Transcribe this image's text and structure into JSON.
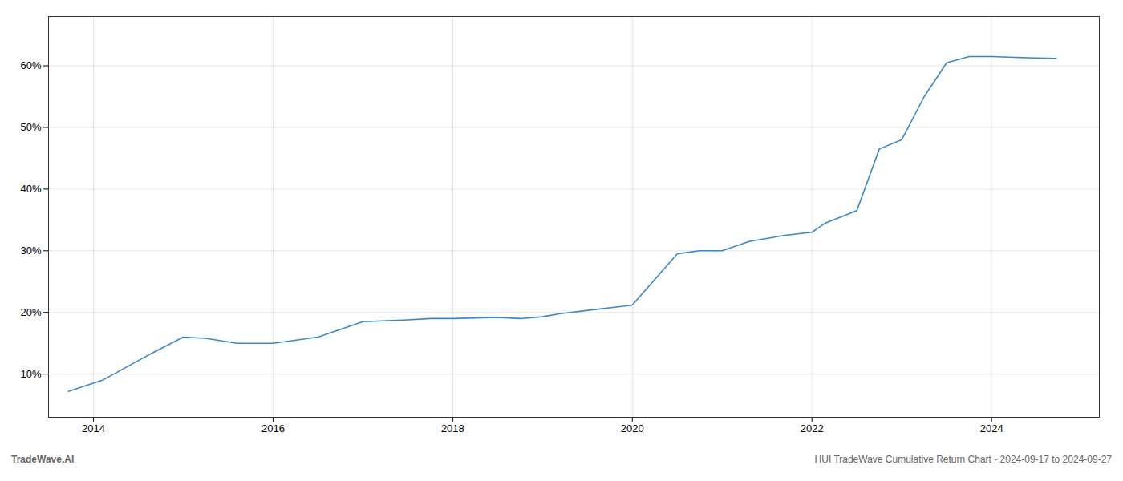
{
  "chart_data": {
    "type": "line",
    "annotations": [
      "TradeWave.AI",
      "HUI TradeWave Cumulative Return Chart - 2024-09-17 to 2024-09-27"
    ],
    "x": [
      2013.72,
      2014.1,
      2014.6,
      2015.0,
      2015.25,
      2015.6,
      2016.0,
      2016.5,
      2017.0,
      2017.5,
      2017.75,
      2018.0,
      2018.5,
      2018.75,
      2019.0,
      2019.2,
      2019.6,
      2019.9,
      2020.0,
      2020.5,
      2020.75,
      2021.0,
      2021.3,
      2021.7,
      2022.0,
      2022.15,
      2022.5,
      2022.75,
      2023.0,
      2023.25,
      2023.5,
      2023.75,
      2024.0,
      2024.4,
      2024.72
    ],
    "values": [
      7.2,
      9.0,
      13.0,
      16.0,
      15.8,
      15.0,
      15.0,
      16.0,
      18.5,
      18.8,
      19.0,
      19.0,
      19.2,
      19.0,
      19.3,
      19.8,
      20.5,
      21.0,
      21.2,
      29.5,
      30.0,
      30.0,
      31.5,
      32.5,
      33.0,
      34.5,
      36.5,
      46.5,
      48.0,
      55.0,
      60.5,
      61.5,
      61.5,
      61.3,
      61.2
    ],
    "color": "#3a87c8",
    "xlim": [
      2013.5,
      2025.2
    ],
    "ylim": [
      3,
      68
    ],
    "xticks": [
      2014,
      2016,
      2018,
      2020,
      2022,
      2024
    ],
    "yticks": [
      {
        "value": 10,
        "label": "10%"
      },
      {
        "value": 20,
        "label": "20%"
      },
      {
        "value": 30,
        "label": "30%"
      },
      {
        "value": 40,
        "label": "40%"
      },
      {
        "value": 50,
        "label": "50%"
      },
      {
        "value": 60,
        "label": "60%"
      }
    ],
    "grid": true
  }
}
